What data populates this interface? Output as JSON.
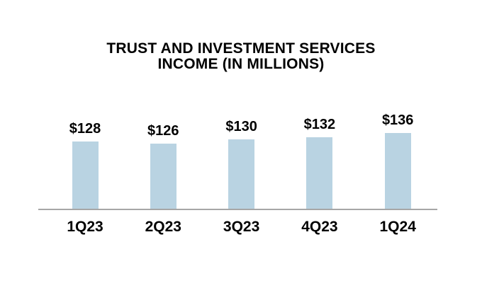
{
  "title": {
    "line1": "TRUST AND INVESTMENT SERVICES",
    "line2": "INCOME (IN MILLIONS)"
  },
  "chart_data": {
    "type": "bar",
    "title": "TRUST AND INVESTMENT SERVICES INCOME (IN MILLIONS)",
    "categories": [
      "1Q23",
      "2Q23",
      "3Q23",
      "4Q23",
      "1Q24"
    ],
    "values": [
      128,
      126,
      130,
      132,
      136
    ],
    "value_labels": [
      "$128",
      "$126",
      "$130",
      "$132",
      "$136"
    ],
    "series_name": "Trust and investment services income ($ millions)",
    "xlabel": "",
    "ylabel": "",
    "unit": "USD millions",
    "ylim_estimate": [
      64,
      160
    ],
    "grid": false,
    "legend": false,
    "data_labels_position": "above bars",
    "colors": {
      "bar_fill": "#B9D3E2",
      "axis_line": "#A6A6A6",
      "text": "#000000",
      "background": "#FFFFFF"
    }
  }
}
